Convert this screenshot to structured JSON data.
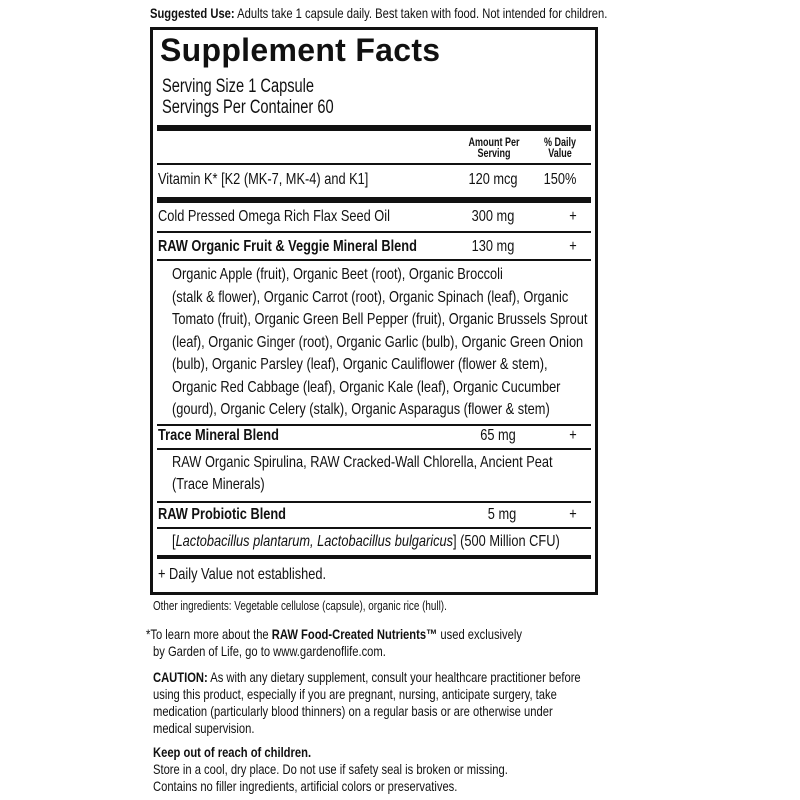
{
  "suggested_use": {
    "label": "Suggested Use:",
    "text": "Adults take 1 capsule daily. Best taken with food. Not intended for children."
  },
  "panel": {
    "title": "Supplement Facts",
    "serving_size": "Serving Size 1 Capsule",
    "servings_per_container": "Servings Per Container 60",
    "col_amount": [
      "Amount Per",
      "Serving"
    ],
    "col_dv": [
      "% Daily",
      "Value"
    ],
    "rows": [
      {
        "name": "Vitamin K* [K2 (MK-7, MK-4) and K1]",
        "amount": "120 mcg",
        "dv": "150%"
      },
      {
        "name": "Cold Pressed Omega Rich Flax Seed Oil",
        "amount": "300 mg",
        "dv": "+"
      },
      {
        "name": "RAW Organic Fruit & Veggie Mineral Blend",
        "amount": "130 mg",
        "dv": "+"
      },
      {
        "name": "Trace Mineral Blend",
        "amount": "65 mg",
        "dv": "+"
      },
      {
        "name": "RAW Probiotic Blend",
        "amount": "5 mg",
        "dv": "+"
      }
    ],
    "fruit_veggie_ingredients": [
      "Organic Apple (fruit), Organic Beet (root), Organic Broccoli",
      "(stalk & flower), Organic Carrot (root), Organic Spinach (leaf), Organic",
      "Tomato (fruit), Organic Green Bell Pepper (fruit), Organic Brussels Sprout",
      "(leaf), Organic Ginger (root), Organic Garlic (bulb), Organic Green Onion",
      "(bulb), Organic Parsley (leaf), Organic Cauliflower (flower & stem),",
      "Organic Red Cabbage (leaf), Organic Kale (leaf), Organic Cucumber",
      "(gourd), Organic Celery (stalk), Organic Asparagus (flower & stem)"
    ],
    "trace_ingredients": [
      "RAW Organic Spirulina, RAW Cracked-Wall Chlorella, Ancient Peat",
      "(Trace Minerals)"
    ],
    "probiotic_ingredients": {
      "italic": "Lactobacillus plantarum, Lactobacillus bulgaricus",
      "rest": "(500 Million CFU)"
    },
    "footnote": "+ Daily Value not established."
  },
  "other_ingredients": "Other ingredients: Vegetable cellulose (capsule), organic rice (hull).",
  "learn_more": {
    "pre": "*To learn more about the ",
    "bold": "RAW Food-Created Nutrients™",
    "post": " used exclusively",
    "line2": "by Garden of Life, go to www.gardenoflife.com."
  },
  "caution": {
    "label": "CAUTION:",
    "lines": [
      " As with any dietary supplement, consult your healthcare practitioner before",
      "using this product, especially if you are pregnant, nursing, anticipate surgery, take",
      "medication (particularly blood thinners) on a regular basis or are otherwise under",
      "medical supervision."
    ]
  },
  "keep_out": "Keep out of reach of children.",
  "storage": [
    "Store in a cool, dry place. Do not use if safety seal is broken or missing.",
    "Contains no filler ingredients, artificial colors or preservatives."
  ]
}
